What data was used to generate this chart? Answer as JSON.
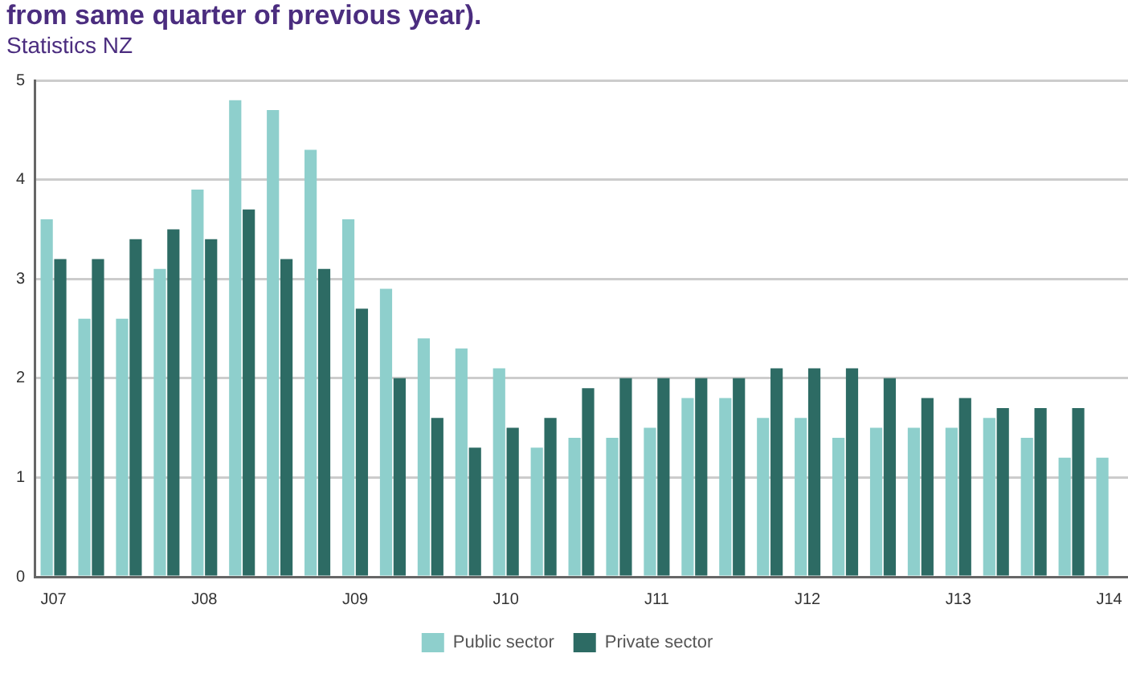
{
  "chart_data": {
    "type": "bar",
    "title": "from same quarter of previous year).",
    "subtitle": "Statistics NZ",
    "categories": [
      "J07",
      null,
      null,
      null,
      "J08",
      null,
      null,
      null,
      "J09",
      null,
      null,
      null,
      "J10",
      null,
      null,
      null,
      "J11",
      null,
      null,
      null,
      "J12",
      null,
      null,
      null,
      "J13",
      null,
      null,
      null,
      "J14"
    ],
    "series": [
      {
        "name": "Public sector",
        "color": "#8ecfcc",
        "values": [
          3.6,
          2.6,
          2.6,
          3.1,
          3.9,
          4.8,
          4.7,
          4.3,
          3.6,
          2.9,
          2.4,
          2.3,
          2.1,
          1.3,
          1.4,
          1.4,
          1.5,
          1.8,
          1.8,
          1.6,
          1.6,
          1.4,
          1.5,
          1.5,
          1.5,
          1.6,
          1.4,
          1.2,
          1.2
        ]
      },
      {
        "name": "Private sector",
        "color": "#2d6b64",
        "values": [
          3.2,
          3.2,
          3.4,
          3.5,
          3.4,
          3.7,
          3.2,
          3.1,
          2.7,
          2.0,
          1.6,
          1.3,
          1.5,
          1.6,
          1.9,
          2.0,
          2.0,
          2.0,
          2.0,
          2.1,
          2.1,
          2.1,
          2.0,
          1.8,
          1.8,
          1.7,
          1.7,
          1.7,
          null
        ]
      }
    ],
    "ylim": [
      0,
      5
    ],
    "yticks": [
      0,
      1,
      2,
      3,
      4,
      5
    ],
    "grid": "y",
    "legend": "bottom"
  }
}
